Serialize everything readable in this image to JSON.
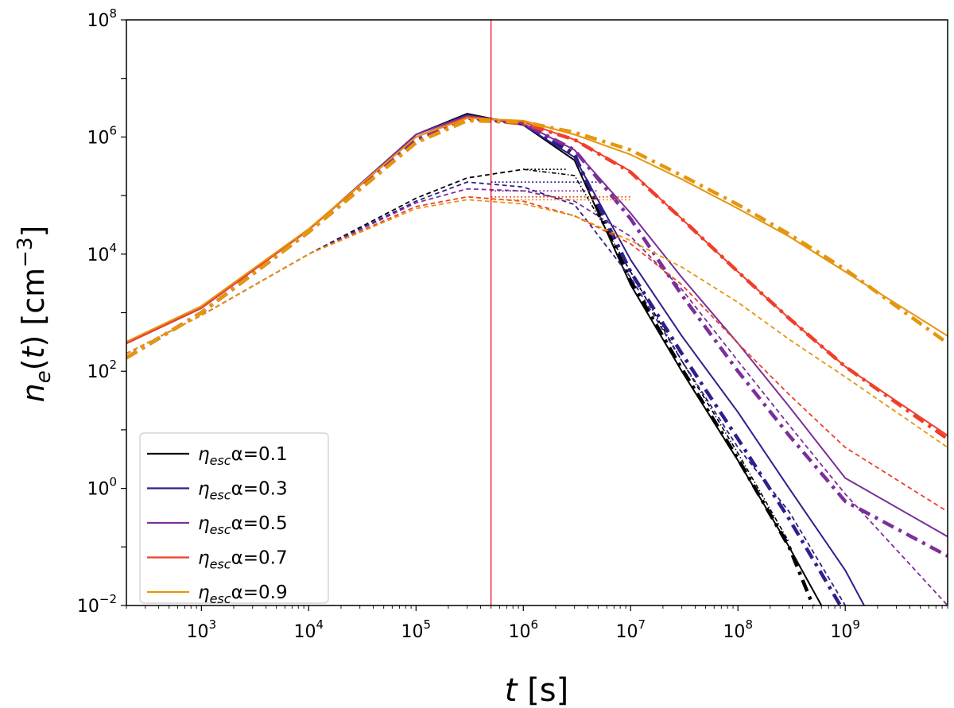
{
  "chart_data": {
    "type": "line",
    "xscale": "log",
    "yscale": "log",
    "xlim": [
      200,
      9000000000
    ],
    "ylim": [
      0.01,
      100000000
    ],
    "xlabel": "t [s]",
    "ylabel": "n_e(t) [cm^-3]",
    "xticks": [
      {
        "value": 1000,
        "base": "10",
        "exp": "3"
      },
      {
        "value": 10000,
        "base": "10",
        "exp": "4"
      },
      {
        "value": 100000,
        "base": "10",
        "exp": "5"
      },
      {
        "value": 1000000,
        "base": "10",
        "exp": "6"
      },
      {
        "value": 10000000,
        "base": "10",
        "exp": "7"
      },
      {
        "value": 100000000,
        "base": "10",
        "exp": "8"
      },
      {
        "value": 1000000000,
        "base": "10",
        "exp": "9"
      }
    ],
    "yticks": [
      {
        "value": 0.01,
        "base": "10",
        "exp": "−2"
      },
      {
        "value": 1,
        "base": "10",
        "exp": "0"
      },
      {
        "value": 100,
        "base": "10",
        "exp": "2"
      },
      {
        "value": 10000,
        "base": "10",
        "exp": "4"
      },
      {
        "value": 1000000,
        "base": "10",
        "exp": "6"
      },
      {
        "value": 100000000,
        "base": "10",
        "exp": "8"
      }
    ],
    "vline": {
      "x": 500000,
      "color": "#e8001c"
    },
    "legend": {
      "position": "lower-left",
      "entries": [
        {
          "label": "η",
          "sub": "esc",
          "suffix": "α=0.1",
          "color": "#000000"
        },
        {
          "label": "η",
          "sub": "esc",
          "suffix": "α=0.3",
          "color": "#2e1f8c"
        },
        {
          "label": "η",
          "sub": "esc",
          "suffix": "α=0.5",
          "color": "#7b2f9a"
        },
        {
          "label": "η",
          "sub": "esc",
          "suffix": "α=0.7",
          "color": "#f03e2a"
        },
        {
          "label": "η",
          "sub": "esc",
          "suffix": "α=0.9",
          "color": "#e5960e"
        }
      ]
    },
    "series": [
      {
        "name": "solid-0.1",
        "color": "#000000",
        "style": "solid",
        "width": 2,
        "points": [
          [
            200,
            300
          ],
          [
            1000,
            1200
          ],
          [
            10000,
            26000
          ],
          [
            100000,
            1100000
          ],
          [
            300000,
            2500000
          ],
          [
            1000000,
            1600000
          ],
          [
            3000000,
            400000
          ],
          [
            10000000,
            3000
          ],
          [
            30000000,
            100
          ],
          [
            100000000,
            3
          ],
          [
            300000000,
            0.1
          ],
          [
            600000000,
            0.01
          ]
        ]
      },
      {
        "name": "dashdot-0.1",
        "color": "#000000",
        "style": "dashdot",
        "width": 4.5,
        "points": [
          [
            200,
            170
          ],
          [
            1000,
            1000
          ],
          [
            10000,
            24000
          ],
          [
            100000,
            900000
          ],
          [
            300000,
            2200000
          ],
          [
            1000000,
            1700000
          ],
          [
            3000000,
            500000
          ],
          [
            10000000,
            3500
          ],
          [
            30000000,
            110
          ],
          [
            100000000,
            3.2
          ],
          [
            300000000,
            0.1
          ],
          [
            500000000,
            0.01
          ]
        ]
      },
      {
        "name": "dashed-0.1",
        "color": "#000000",
        "style": "dashed",
        "width": 1.8,
        "points": [
          [
            200,
            200
          ],
          [
            1000,
            900
          ],
          [
            10000,
            10000
          ],
          [
            100000,
            90000
          ],
          [
            300000,
            200000
          ],
          [
            1000000,
            280000
          ]
        ]
      },
      {
        "name": "dotted-0.1",
        "color": "#000000",
        "style": "dotted",
        "width": 1.8,
        "points": [
          [
            1000000,
            280000
          ],
          [
            2500000,
            280000
          ]
        ]
      },
      {
        "name": "dashdotthin-0.1",
        "color": "#000000",
        "style": "dashdot",
        "width": 1.6,
        "points": [
          [
            1000000,
            280000
          ],
          [
            3000000,
            220000
          ],
          [
            10000000,
            5000
          ],
          [
            30000000,
            150
          ],
          [
            100000000,
            4
          ],
          [
            300000000,
            0.12
          ]
        ]
      },
      {
        "name": "solid-0.3",
        "color": "#2e1f8c",
        "style": "solid",
        "width": 2,
        "points": [
          [
            200,
            300
          ],
          [
            1000,
            1200
          ],
          [
            10000,
            26000
          ],
          [
            100000,
            1100000
          ],
          [
            300000,
            2400000
          ],
          [
            1000000,
            1600000
          ],
          [
            3000000,
            450000
          ],
          [
            10000000,
            8000
          ],
          [
            30000000,
            400
          ],
          [
            100000000,
            20
          ],
          [
            300000000,
            1
          ],
          [
            1000000000,
            0.04
          ],
          [
            1500000000,
            0.01
          ]
        ]
      },
      {
        "name": "dashdot-0.3",
        "color": "#2e1f8c",
        "style": "dashdot",
        "width": 4.5,
        "points": [
          [
            200,
            170
          ],
          [
            1000,
            1000
          ],
          [
            10000,
            24000
          ],
          [
            100000,
            900000
          ],
          [
            300000,
            2200000
          ],
          [
            1000000,
            1700000
          ],
          [
            3000000,
            480000
          ],
          [
            10000000,
            5000
          ],
          [
            30000000,
            200
          ],
          [
            100000000,
            7
          ],
          [
            300000000,
            0.3
          ],
          [
            900000000,
            0.01
          ]
        ]
      },
      {
        "name": "dashed-0.3",
        "color": "#2e1f8c",
        "style": "dashed",
        "width": 1.8,
        "points": [
          [
            200,
            200
          ],
          [
            1000,
            900
          ],
          [
            10000,
            10000
          ],
          [
            100000,
            80000
          ],
          [
            300000,
            170000
          ],
          [
            1000000,
            140000
          ],
          [
            3000000,
            70000
          ],
          [
            10000000,
            4000
          ],
          [
            30000000,
            150
          ],
          [
            100000000,
            5
          ],
          [
            300000000,
            0.4
          ],
          [
            1000000000,
            0.01
          ]
        ]
      },
      {
        "name": "dotted-0.3",
        "color": "#2e1f8c",
        "style": "dotted",
        "width": 1.8,
        "points": [
          [
            500000,
            170000
          ],
          [
            5000000,
            170000
          ]
        ]
      },
      {
        "name": "solid-0.5",
        "color": "#7b2f9a",
        "style": "solid",
        "width": 2,
        "points": [
          [
            200,
            300
          ],
          [
            1000,
            1200
          ],
          [
            10000,
            26000
          ],
          [
            100000,
            1100000
          ],
          [
            300000,
            2300000
          ],
          [
            1000000,
            1700000
          ],
          [
            3000000,
            600000
          ],
          [
            10000000,
            50000
          ],
          [
            30000000,
            4000
          ],
          [
            100000000,
            300
          ],
          [
            300000000,
            25
          ],
          [
            1000000000,
            1.5
          ],
          [
            9000000000,
            0.15
          ]
        ]
      },
      {
        "name": "dashdot-0.5",
        "color": "#7b2f9a",
        "style": "dashdot",
        "width": 4.5,
        "points": [
          [
            200,
            170
          ],
          [
            1000,
            1000
          ],
          [
            10000,
            24000
          ],
          [
            100000,
            900000
          ],
          [
            300000,
            2100000
          ],
          [
            1000000,
            1700000
          ],
          [
            3000000,
            600000
          ],
          [
            10000000,
            40000
          ],
          [
            30000000,
            2000
          ],
          [
            100000000,
            100
          ],
          [
            300000000,
            8
          ],
          [
            1000000000,
            0.6
          ],
          [
            9000000000,
            0.07
          ]
        ]
      },
      {
        "name": "dashed-0.5",
        "color": "#7b2f9a",
        "style": "dashed",
        "width": 1.8,
        "points": [
          [
            200,
            200
          ],
          [
            1000,
            900
          ],
          [
            10000,
            10000
          ],
          [
            100000,
            75000
          ],
          [
            300000,
            130000
          ],
          [
            1000000,
            120000
          ],
          [
            3000000,
            80000
          ],
          [
            10000000,
            20000
          ],
          [
            30000000,
            2500
          ],
          [
            100000000,
            150
          ],
          [
            300000000,
            12
          ],
          [
            1000000000,
            0.8
          ],
          [
            9000000000,
            0.01
          ]
        ]
      },
      {
        "name": "dotted-0.5",
        "color": "#7b2f9a",
        "style": "dotted",
        "width": 1.8,
        "points": [
          [
            500000,
            120000
          ],
          [
            5000000,
            120000
          ]
        ]
      },
      {
        "name": "solid-0.7",
        "color": "#f03e2a",
        "style": "solid",
        "width": 2,
        "points": [
          [
            200,
            300
          ],
          [
            1000,
            1200
          ],
          [
            10000,
            26000
          ],
          [
            100000,
            1000000
          ],
          [
            300000,
            2200000
          ],
          [
            1000000,
            1800000
          ],
          [
            3000000,
            900000
          ],
          [
            10000000,
            260000
          ],
          [
            30000000,
            40000
          ],
          [
            100000000,
            5000
          ],
          [
            300000000,
            800
          ],
          [
            1000000000,
            120
          ],
          [
            9000000000,
            8
          ]
        ]
      },
      {
        "name": "dashdot-0.7",
        "color": "#f03e2a",
        "style": "dashdot",
        "width": 4.5,
        "points": [
          [
            200,
            170
          ],
          [
            1000,
            1000
          ],
          [
            10000,
            24000
          ],
          [
            100000,
            800000
          ],
          [
            300000,
            2000000
          ],
          [
            1000000,
            1700000
          ],
          [
            3000000,
            900000
          ],
          [
            10000000,
            250000
          ],
          [
            30000000,
            40000
          ],
          [
            100000000,
            5000
          ],
          [
            300000000,
            800
          ],
          [
            1000000000,
            120
          ],
          [
            9000000000,
            7
          ]
        ]
      },
      {
        "name": "dashed-0.7",
        "color": "#f03e2a",
        "style": "dashed",
        "width": 1.8,
        "points": [
          [
            200,
            200
          ],
          [
            1000,
            900
          ],
          [
            10000,
            10000
          ],
          [
            100000,
            65000
          ],
          [
            300000,
            95000
          ],
          [
            1000000,
            80000
          ],
          [
            3000000,
            45000
          ],
          [
            10000000,
            15000
          ],
          [
            30000000,
            3000
          ],
          [
            100000000,
            300
          ],
          [
            300000000,
            40
          ],
          [
            1000000000,
            5
          ],
          [
            9000000000,
            0.4
          ]
        ]
      },
      {
        "name": "dotted-0.7",
        "color": "#f03e2a",
        "style": "dotted",
        "width": 1.8,
        "points": [
          [
            500000,
            95000
          ],
          [
            10000000,
            95000
          ]
        ]
      },
      {
        "name": "solid-0.9",
        "color": "#e5960e",
        "style": "solid",
        "width": 2,
        "points": [
          [
            200,
            320
          ],
          [
            1000,
            1300
          ],
          [
            10000,
            27000
          ],
          [
            100000,
            1000000
          ],
          [
            300000,
            2100000
          ],
          [
            1000000,
            1900000
          ],
          [
            3000000,
            1100000
          ],
          [
            10000000,
            500000
          ],
          [
            30000000,
            190000
          ],
          [
            100000000,
            60000
          ],
          [
            300000000,
            20000
          ],
          [
            1000000000,
            5000
          ],
          [
            9000000000,
            400
          ]
        ]
      },
      {
        "name": "dashdot-0.9",
        "color": "#e5960e",
        "style": "dashdot",
        "width": 4.5,
        "points": [
          [
            200,
            170
          ],
          [
            1000,
            1000
          ],
          [
            10000,
            24000
          ],
          [
            100000,
            800000
          ],
          [
            300000,
            1900000
          ],
          [
            1000000,
            1800000
          ],
          [
            3000000,
            1200000
          ],
          [
            10000000,
            600000
          ],
          [
            30000000,
            220000
          ],
          [
            100000000,
            70000
          ],
          [
            300000000,
            22000
          ],
          [
            1000000000,
            5500
          ],
          [
            9000000000,
            300
          ]
        ]
      },
      {
        "name": "dashed-0.9",
        "color": "#e5960e",
        "style": "dashed",
        "width": 1.8,
        "points": [
          [
            200,
            200
          ],
          [
            1000,
            900
          ],
          [
            10000,
            10000
          ],
          [
            100000,
            60000
          ],
          [
            300000,
            85000
          ],
          [
            1000000,
            72000
          ],
          [
            3000000,
            45000
          ],
          [
            10000000,
            17000
          ],
          [
            30000000,
            6000
          ],
          [
            100000000,
            1500
          ],
          [
            300000000,
            350
          ],
          [
            1000000000,
            80
          ],
          [
            9000000000,
            5
          ]
        ]
      },
      {
        "name": "dotted-0.9",
        "color": "#e5960e",
        "style": "dotted",
        "width": 1.8,
        "points": [
          [
            500000,
            85000
          ],
          [
            10000000,
            85000
          ]
        ]
      }
    ]
  }
}
